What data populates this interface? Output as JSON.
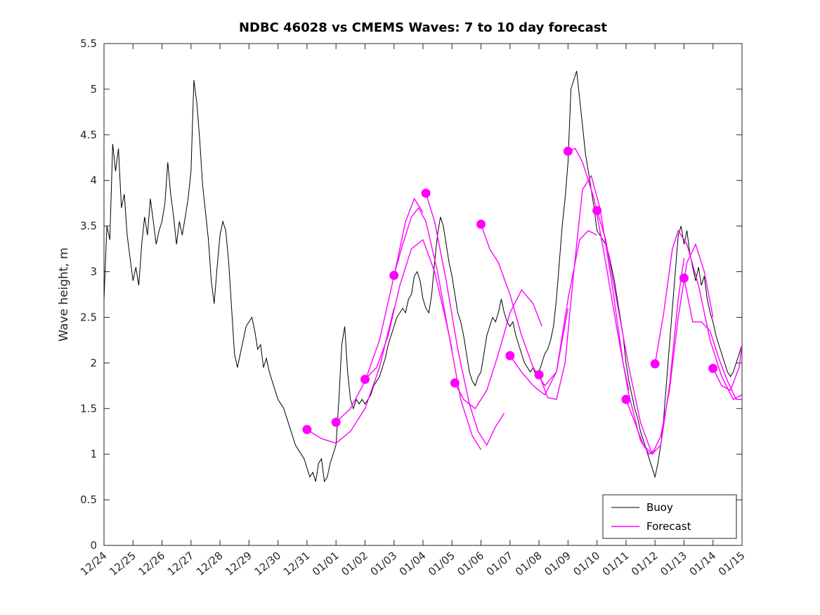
{
  "figure": {
    "title": "NDBC 46028 vs CMEMS Waves: 7 to 10 day forecast"
  },
  "chart_data": {
    "type": "line",
    "title": "NDBC 46028 vs CMEMS Waves: 7 to 10 day forecast",
    "xlabel": "",
    "ylabel": "Wave height, m",
    "ylim": [
      0,
      5.5
    ],
    "xlim": [
      0,
      22
    ],
    "grid": false,
    "yticks": [
      0,
      0.5,
      1,
      1.5,
      2,
      2.5,
      3,
      3.5,
      4,
      4.5,
      5,
      5.5
    ],
    "ytick_labels": [
      "0",
      "0.5",
      "1",
      "1.5",
      "2",
      "2.5",
      "3",
      "3.5",
      "4",
      "4.5",
      "5",
      "5.5"
    ],
    "xticks": [
      0,
      1,
      2,
      3,
      4,
      5,
      6,
      7,
      8,
      9,
      10,
      11,
      12,
      13,
      14,
      15,
      16,
      17,
      18,
      19,
      20,
      21,
      22
    ],
    "xtick_labels": [
      "12/24",
      "12/25",
      "12/26",
      "12/27",
      "12/28",
      "12/29",
      "12/30",
      "12/31",
      "01/01",
      "01/02",
      "01/03",
      "01/04",
      "01/05",
      "01/06",
      "01/07",
      "01/08",
      "01/09",
      "01/10",
      "01/11",
      "01/12",
      "01/13",
      "01/14",
      "01/15"
    ],
    "colors": {
      "buoy": "#000000",
      "forecast": "#ff00ff",
      "axis": "#262626",
      "tick_label": "#262626",
      "title": "#000000"
    },
    "legend": {
      "position": "lower-right",
      "entries": [
        {
          "label": "Buoy",
          "color": "#000000"
        },
        {
          "label": "Forecast",
          "color": "#ff00ff"
        }
      ]
    },
    "buoy_series": {
      "name": "Buoy",
      "units": "m",
      "t_start_day": 0,
      "dt_days": 0.1,
      "values": [
        2.7,
        3.5,
        3.35,
        4.4,
        4.1,
        4.35,
        3.7,
        3.85,
        3.4,
        3.15,
        2.9,
        3.05,
        2.85,
        3.3,
        3.6,
        3.4,
        3.8,
        3.55,
        3.3,
        3.45,
        3.55,
        3.75,
        4.2,
        3.85,
        3.6,
        3.3,
        3.55,
        3.4,
        3.6,
        3.8,
        4.1,
        5.1,
        4.85,
        4.45,
        3.95,
        3.65,
        3.35,
        2.9,
        2.65,
        3.05,
        3.4,
        3.55,
        3.45,
        3.1,
        2.6,
        2.1,
        1.95,
        2.1,
        2.25,
        2.4,
        2.45,
        2.5,
        2.35,
        2.15,
        2.2,
        1.95,
        2.05,
        1.9,
        1.8,
        1.7,
        1.6,
        1.55,
        1.5,
        1.4,
        1.3,
        1.2,
        1.1,
        1.05,
        1.0,
        0.95,
        0.85,
        0.75,
        0.8,
        0.7,
        0.9,
        0.95,
        0.7,
        0.75,
        0.9,
        1.0,
        1.1,
        1.6,
        2.2,
        2.4,
        1.9,
        1.6,
        1.5,
        1.6,
        1.55,
        1.6,
        1.55,
        1.6,
        1.65,
        1.75,
        1.8,
        1.85,
        1.95,
        2.05,
        2.2,
        2.3,
        2.4,
        2.5,
        2.55,
        2.6,
        2.55,
        2.7,
        2.75,
        2.95,
        3.0,
        2.9,
        2.7,
        2.6,
        2.55,
        2.75,
        3.1,
        3.4,
        3.6,
        3.5,
        3.3,
        3.1,
        2.95,
        2.75,
        2.55,
        2.45,
        2.3,
        2.1,
        1.9,
        1.8,
        1.75,
        1.85,
        1.9,
        2.1,
        2.3,
        2.4,
        2.5,
        2.45,
        2.55,
        2.7,
        2.55,
        2.45,
        2.4,
        2.45,
        2.3,
        2.2,
        2.1,
        2.0,
        1.95,
        1.9,
        1.95,
        1.85,
        1.9,
        2.0,
        2.1,
        2.15,
        2.25,
        2.4,
        2.7,
        3.1,
        3.5,
        3.8,
        4.2,
        5.0,
        5.1,
        5.2,
        4.9,
        4.6,
        4.3,
        4.1,
        3.9,
        3.7,
        3.45,
        3.4,
        3.35,
        3.3,
        3.2,
        3.05,
        2.9,
        2.7,
        2.5,
        2.3,
        2.0,
        1.8,
        1.65,
        1.5,
        1.4,
        1.25,
        1.15,
        1.05,
        0.95,
        0.85,
        0.75,
        0.9,
        1.1,
        1.4,
        1.8,
        2.2,
        2.6,
        3.0,
        3.4,
        3.5,
        3.3,
        3.45,
        3.2,
        3.05,
        2.9,
        3.05,
        2.85,
        2.95,
        2.7,
        2.55,
        2.45,
        2.3,
        2.2,
        2.1,
        2.0,
        1.9,
        1.85,
        1.9,
        2.0,
        2.1,
        2.2
      ]
    },
    "forecast_runs": [
      {
        "start_marker": [
          7.0,
          1.27
        ],
        "points": [
          [
            7.0,
            1.27
          ],
          [
            7.5,
            1.17
          ],
          [
            8.0,
            1.12
          ],
          [
            8.5,
            1.25
          ],
          [
            9.0,
            1.5
          ],
          [
            9.5,
            1.95
          ],
          [
            10.0,
            2.6
          ]
        ]
      },
      {
        "start_marker": [
          8.0,
          1.35
        ],
        "points": [
          [
            8.0,
            1.35
          ],
          [
            8.5,
            1.5
          ],
          [
            9.0,
            1.8
          ],
          [
            9.5,
            2.25
          ],
          [
            10.0,
            2.95
          ],
          [
            10.4,
            3.55
          ],
          [
            10.7,
            3.8
          ],
          [
            11.0,
            3.65
          ]
        ]
      },
      {
        "start_marker": [
          9.0,
          1.82
        ],
        "points": [
          [
            9.0,
            1.82
          ],
          [
            9.4,
            1.95
          ],
          [
            9.8,
            2.3
          ],
          [
            10.2,
            2.85
          ],
          [
            10.6,
            3.25
          ],
          [
            11.0,
            3.35
          ],
          [
            11.4,
            3.0
          ],
          [
            11.8,
            2.45
          ],
          [
            12.0,
            2.15
          ]
        ]
      },
      {
        "start_marker": [
          10.0,
          2.96
        ],
        "points": [
          [
            10.0,
            2.96
          ],
          [
            10.3,
            3.3
          ],
          [
            10.6,
            3.6
          ],
          [
            10.85,
            3.7
          ],
          [
            11.1,
            3.55
          ],
          [
            11.5,
            3.0
          ],
          [
            11.9,
            2.3
          ],
          [
            12.3,
            1.6
          ],
          [
            12.7,
            1.2
          ],
          [
            13.0,
            1.05
          ]
        ]
      },
      {
        "start_marker": [
          11.1,
          3.86
        ],
        "points": [
          [
            11.1,
            3.86
          ],
          [
            11.4,
            3.55
          ],
          [
            11.8,
            2.9
          ],
          [
            12.2,
            2.15
          ],
          [
            12.6,
            1.55
          ],
          [
            12.9,
            1.25
          ],
          [
            13.2,
            1.1
          ],
          [
            13.5,
            1.3
          ],
          [
            13.8,
            1.45
          ]
        ]
      },
      {
        "start_marker": [
          12.1,
          1.78
        ],
        "points": [
          [
            12.1,
            1.78
          ],
          [
            12.4,
            1.6
          ],
          [
            12.8,
            1.5
          ],
          [
            13.2,
            1.7
          ],
          [
            13.6,
            2.1
          ],
          [
            14.0,
            2.55
          ],
          [
            14.4,
            2.8
          ],
          [
            14.8,
            2.65
          ],
          [
            15.1,
            2.4
          ]
        ]
      },
      {
        "start_marker": [
          13.0,
          3.52
        ],
        "points": [
          [
            13.0,
            3.52
          ],
          [
            13.3,
            3.25
          ],
          [
            13.6,
            3.1
          ],
          [
            14.0,
            2.75
          ],
          [
            14.4,
            2.3
          ],
          [
            14.8,
            1.95
          ],
          [
            15.2,
            1.75
          ],
          [
            15.6,
            1.9
          ],
          [
            16.0,
            2.6
          ]
        ]
      },
      {
        "start_marker": [
          14.0,
          2.08
        ],
        "points": [
          [
            14.0,
            2.08
          ],
          [
            14.4,
            1.9
          ],
          [
            14.8,
            1.75
          ],
          [
            15.2,
            1.65
          ],
          [
            15.6,
            1.9
          ],
          [
            16.0,
            2.7
          ],
          [
            16.4,
            3.35
          ],
          [
            16.7,
            3.45
          ],
          [
            17.0,
            3.4
          ]
        ]
      },
      {
        "start_marker": [
          15.0,
          1.87
        ],
        "points": [
          [
            15.0,
            1.87
          ],
          [
            15.3,
            1.62
          ],
          [
            15.6,
            1.6
          ],
          [
            15.9,
            2.0
          ],
          [
            16.2,
            3.0
          ],
          [
            16.5,
            3.9
          ],
          [
            16.8,
            4.05
          ],
          [
            17.1,
            3.7
          ],
          [
            17.5,
            2.9
          ],
          [
            17.9,
            2.0
          ],
          [
            18.1,
            1.7
          ]
        ]
      },
      {
        "start_marker": [
          16.0,
          4.32
        ],
        "points": [
          [
            16.0,
            4.32
          ],
          [
            16.25,
            4.35
          ],
          [
            16.5,
            4.2
          ],
          [
            16.9,
            3.8
          ],
          [
            17.3,
            3.1
          ],
          [
            17.7,
            2.35
          ],
          [
            18.1,
            1.65
          ],
          [
            18.5,
            1.15
          ],
          [
            18.8,
            1.0
          ],
          [
            19.0,
            1.05
          ]
        ]
      },
      {
        "start_marker": [
          17.0,
          3.67
        ],
        "points": [
          [
            17.0,
            3.67
          ],
          [
            17.3,
            3.35
          ],
          [
            17.7,
            2.65
          ],
          [
            18.1,
            1.95
          ],
          [
            18.5,
            1.35
          ],
          [
            18.9,
            1.0
          ],
          [
            19.2,
            1.1
          ],
          [
            19.5,
            1.75
          ],
          [
            19.8,
            2.7
          ],
          [
            20.0,
            3.15
          ]
        ]
      },
      {
        "start_marker": [
          18.0,
          1.6
        ],
        "points": [
          [
            18.0,
            1.6
          ],
          [
            18.3,
            1.35
          ],
          [
            18.6,
            1.1
          ],
          [
            18.9,
            1.0
          ],
          [
            19.2,
            1.2
          ],
          [
            19.5,
            1.7
          ],
          [
            19.8,
            2.5
          ],
          [
            20.1,
            3.1
          ],
          [
            20.4,
            3.3
          ],
          [
            20.7,
            3.0
          ],
          [
            21.0,
            2.5
          ]
        ]
      },
      {
        "start_marker": [
          19.0,
          1.99
        ],
        "points": [
          [
            19.0,
            1.99
          ],
          [
            19.3,
            2.55
          ],
          [
            19.6,
            3.25
          ],
          [
            19.8,
            3.45
          ],
          [
            20.1,
            3.3
          ],
          [
            20.5,
            2.85
          ],
          [
            20.9,
            2.25
          ],
          [
            21.3,
            1.85
          ],
          [
            21.7,
            1.6
          ],
          [
            22.0,
            1.65
          ]
        ]
      },
      {
        "start_marker": [
          20.0,
          2.93
        ],
        "points": [
          [
            20.0,
            2.93
          ],
          [
            20.3,
            2.45
          ],
          [
            20.6,
            2.45
          ],
          [
            20.9,
            2.35
          ],
          [
            21.2,
            2.05
          ],
          [
            21.5,
            1.8
          ],
          [
            21.8,
            1.6
          ],
          [
            22.0,
            1.6
          ]
        ]
      },
      {
        "start_marker": [
          21.0,
          1.94
        ],
        "points": [
          [
            21.0,
            1.94
          ],
          [
            21.3,
            1.75
          ],
          [
            21.6,
            1.7
          ],
          [
            21.9,
            1.95
          ],
          [
            22.0,
            2.2
          ]
        ]
      }
    ]
  }
}
